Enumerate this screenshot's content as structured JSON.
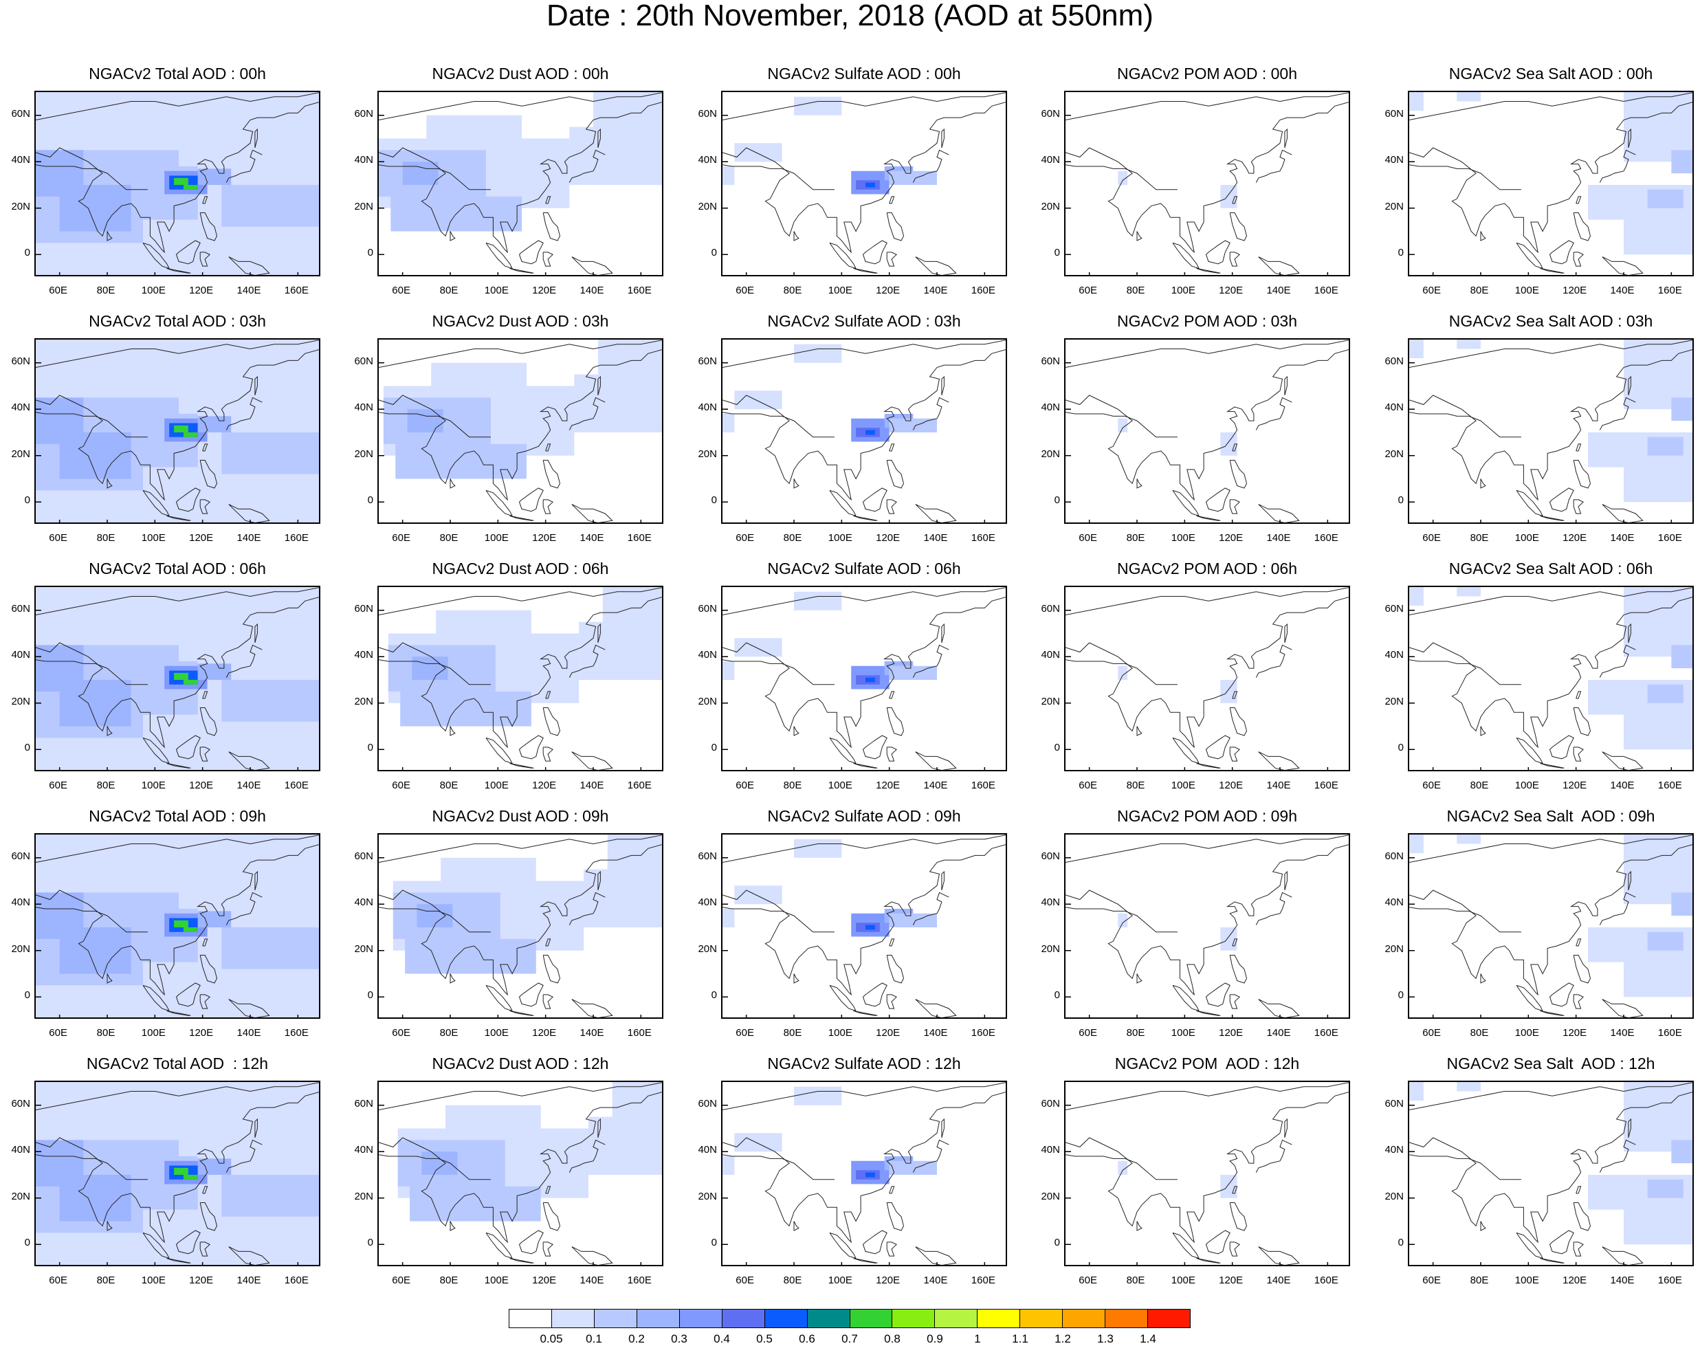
{
  "main_title": "Date : 20th November, 2018 (AOD at 550nm)",
  "lat_labels": [
    "60N",
    "40N",
    "20N",
    "0"
  ],
  "lon_labels": [
    "60E",
    "80E",
    "100E",
    "120E",
    "140E",
    "160E"
  ],
  "row_titles": [
    [
      "NGACv2 Total AOD : 00h",
      "NGACv2 Dust AOD : 00h",
      "NGACv2 Sulfate AOD : 00h",
      "NGACv2 POM AOD : 00h",
      "NGACv2 Sea Salt AOD : 00h"
    ],
    [
      "NGACv2 Total AOD : 03h",
      "NGACv2 Dust AOD : 03h",
      "NGACv2 Sulfate AOD : 03h",
      "NGACv2 POM AOD : 03h",
      "NGACv2 Sea Salt AOD : 03h"
    ],
    [
      "NGACv2 Total AOD : 06h",
      "NGACv2 Dust AOD : 06h",
      "NGACv2 Sulfate AOD : 06h",
      "NGACv2 POM AOD : 06h",
      "NGACv2 Sea Salt AOD : 06h"
    ],
    [
      "NGACv2 Total AOD : 09h",
      "NGACv2 Dust AOD : 09h",
      "NGACv2 Sulfate AOD : 09h",
      "NGACv2 POM AOD : 09h",
      "NGACv2 Sea Salt  AOD : 09h"
    ],
    [
      "NGACv2 Total AOD  : 12h",
      "NGACv2 Dust AOD : 12h",
      "NGACv2 Sulfate AOD : 12h",
      "NGACv2 POM  AOD : 12h",
      "NGACv2 Sea Salt  AOD : 12h"
    ]
  ],
  "colorbar": {
    "labels": [
      "0.05",
      "0.1",
      "0.2",
      "0.3",
      "0.4",
      "0.5",
      "0.6",
      "0.7",
      "0.8",
      "0.9",
      "1",
      "1.1",
      "1.2",
      "1.3",
      "1.4"
    ],
    "colors": [
      "#ffffff",
      "#d6e0ff",
      "#b8c9ff",
      "#9db4ff",
      "#8099ff",
      "#5f6ff2",
      "#0a5cff",
      "#008a8a",
      "#33d133",
      "#88ee11",
      "#b5f542",
      "#ffff00",
      "#ffc400",
      "#ffa500",
      "#ff7a00",
      "#ff1a00"
    ]
  }
}
